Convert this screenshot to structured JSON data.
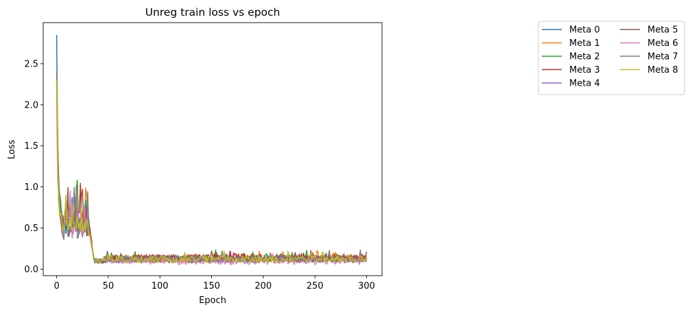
{
  "chart_data": {
    "type": "line",
    "title": "Unreg train loss vs epoch",
    "xlabel": "Epoch",
    "ylabel": "Loss",
    "xlim": [
      -13,
      315
    ],
    "ylim": [
      -0.08,
      3.0
    ],
    "xticks": [
      0,
      50,
      100,
      150,
      200,
      250,
      300
    ],
    "yticks": [
      0.0,
      0.5,
      1.0,
      1.5,
      2.0,
      2.5
    ],
    "ytick_labels": [
      "0.0",
      "0.5",
      "1.0",
      "1.5",
      "2.0",
      "2.5"
    ],
    "grid": false,
    "legend_placement": "outside-right-top",
    "legend_columns": 2,
    "epochs": [
      0,
      300
    ],
    "series": [
      {
        "name": "Meta 0",
        "color": "#1f77b4",
        "start": 2.85,
        "early": [
          1.45,
          1.0,
          0.8,
          0.7,
          0.6,
          0.55,
          0.5
        ],
        "plateau": 0.55,
        "late": 0.12
      },
      {
        "name": "Meta 1",
        "color": "#ff7f0e",
        "start": 2.4,
        "early": [
          1.6,
          1.0,
          0.85,
          0.72,
          0.62,
          0.56,
          0.5
        ],
        "plateau": 0.56,
        "late": 0.13
      },
      {
        "name": "Meta 2",
        "color": "#2ca02c",
        "start": 2.35,
        "early": [
          1.5,
          0.95,
          0.8,
          0.7,
          0.62,
          0.6,
          0.55
        ],
        "plateau": 0.62,
        "late": 0.13
      },
      {
        "name": "Meta 3",
        "color": "#d62728",
        "start": 2.3,
        "early": [
          1.4,
          0.95,
          0.78,
          0.68,
          0.6,
          0.58,
          0.56
        ],
        "plateau": 0.6,
        "late": 0.14
      },
      {
        "name": "Meta 4",
        "color": "#9467bd",
        "start": 2.2,
        "early": [
          1.35,
          0.9,
          0.75,
          0.65,
          0.56,
          0.52,
          0.5
        ],
        "plateau": 0.52,
        "late": 0.12
      },
      {
        "name": "Meta 5",
        "color": "#8c564b",
        "start": 2.25,
        "early": [
          1.3,
          0.92,
          0.76,
          0.66,
          0.58,
          0.54,
          0.5
        ],
        "plateau": 0.54,
        "late": 0.12
      },
      {
        "name": "Meta 6",
        "color": "#e377c2",
        "start": 2.0,
        "early": [
          1.2,
          0.85,
          0.7,
          0.6,
          0.54,
          0.5,
          0.48
        ],
        "plateau": 0.5,
        "late": 0.1
      },
      {
        "name": "Meta 7",
        "color": "#7f7f7f",
        "start": 2.42,
        "early": [
          1.4,
          0.9,
          0.72,
          0.62,
          0.55,
          0.5,
          0.47
        ],
        "plateau": 0.48,
        "late": 0.13
      },
      {
        "name": "Meta 8",
        "color": "#bcbd22",
        "start": 2.3,
        "early": [
          1.35,
          0.88,
          0.72,
          0.62,
          0.55,
          0.52,
          0.5
        ],
        "plateau": 0.53,
        "late": 0.12
      }
    ]
  }
}
